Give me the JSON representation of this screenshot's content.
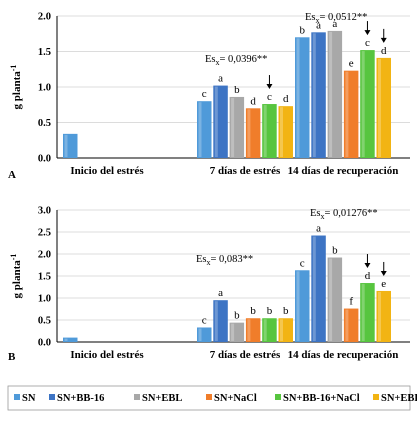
{
  "chart_data": [
    {
      "type": "bar",
      "panel_letter": "A",
      "ylabel": "g planta",
      "ylabel_sup": "-1",
      "ylim": [
        0,
        2.0
      ],
      "yticks": [
        "0.0",
        "0.5",
        "1.0",
        "1.5",
        "2.0"
      ],
      "grid": true,
      "categories": [
        "Inicio del estrés",
        "7 días de estrés",
        "14 días de recuperación"
      ],
      "series": [
        {
          "name": "SN",
          "values": [
            0.34,
            0.8,
            1.7
          ]
        },
        {
          "name": "SN+BB-16",
          "values": [
            null,
            1.02,
            1.77
          ]
        },
        {
          "name": "SN+EBL",
          "values": [
            null,
            0.86,
            1.79
          ]
        },
        {
          "name": "SN+NaCl",
          "values": [
            null,
            0.7,
            1.23
          ]
        },
        {
          "name": "SN+BB-16+NaCl",
          "values": [
            null,
            0.76,
            1.52
          ]
        },
        {
          "name": "SN+EBL+NaCl",
          "values": [
            null,
            0.73,
            1.41
          ]
        }
      ],
      "letters": [
        [
          null,
          null,
          null,
          null,
          null,
          null
        ],
        [
          "c",
          "a",
          "b",
          "d",
          "c",
          "d"
        ],
        [
          "b",
          "a",
          "a",
          "e",
          "c",
          "d"
        ]
      ],
      "arrows": [
        [],
        [
          4
        ],
        [
          4,
          5
        ]
      ],
      "significance": [
        {
          "category": 1,
          "text": "Es",
          "sub": "x",
          "value": "= 0,0396**"
        },
        {
          "category": 2,
          "text": "Es",
          "sub": "x",
          "value": "= 0,0512**"
        }
      ]
    },
    {
      "type": "bar",
      "panel_letter": "B",
      "ylabel": "g planta",
      "ylabel_sup": "-1",
      "ylim": [
        0,
        3.0
      ],
      "yticks": [
        "0.0",
        "0.5",
        "1.0",
        "1.5",
        "2.0",
        "2.5",
        "3.0"
      ],
      "grid": true,
      "categories": [
        "Inicio del estrés",
        "7 días de estrés",
        "14 días de recuperación"
      ],
      "series": [
        {
          "name": "SN",
          "values": [
            0.1,
            0.33,
            1.63
          ]
        },
        {
          "name": "SN+BB-16",
          "values": [
            null,
            0.95,
            2.42
          ]
        },
        {
          "name": "SN+EBL",
          "values": [
            null,
            0.44,
            1.92
          ]
        },
        {
          "name": "SN+NaCl",
          "values": [
            null,
            0.54,
            0.76
          ]
        },
        {
          "name": "SN+BB-16+NaCl",
          "values": [
            null,
            0.54,
            1.34
          ]
        },
        {
          "name": "SN+EBL+NaCl",
          "values": [
            null,
            0.54,
            1.16
          ]
        }
      ],
      "letters": [
        [
          null,
          null,
          null,
          null,
          null,
          null
        ],
        [
          "c",
          "a",
          "b",
          "b",
          "b",
          "b"
        ],
        [
          "c",
          "a",
          "b",
          "f",
          "d",
          "e"
        ]
      ],
      "arrows": [
        [],
        [],
        [
          4,
          5
        ]
      ],
      "significance": [
        {
          "category": 1,
          "text": "Es",
          "sub": "x",
          "value": "= 0,083**"
        },
        {
          "category": 2,
          "text": "Es",
          "sub": "x",
          "value": "= 0,01276**"
        }
      ]
    }
  ],
  "legend": {
    "placement": "bottom",
    "entries": [
      "SN",
      "SN+BB-16",
      "SN+EBL",
      "SN+NaCl",
      "SN+BB-16+NaCl",
      "SN+EBL+NaCl"
    ]
  },
  "colors": {
    "SN": "#4f9ad9",
    "SN+BB-16": "#3d74c4",
    "SN+EBL": "#a8a8a8",
    "SN+NaCl": "#f07d2a",
    "SN+BB-16+NaCl": "#57c53f",
    "SN+EBL+NaCl": "#f2b413"
  }
}
